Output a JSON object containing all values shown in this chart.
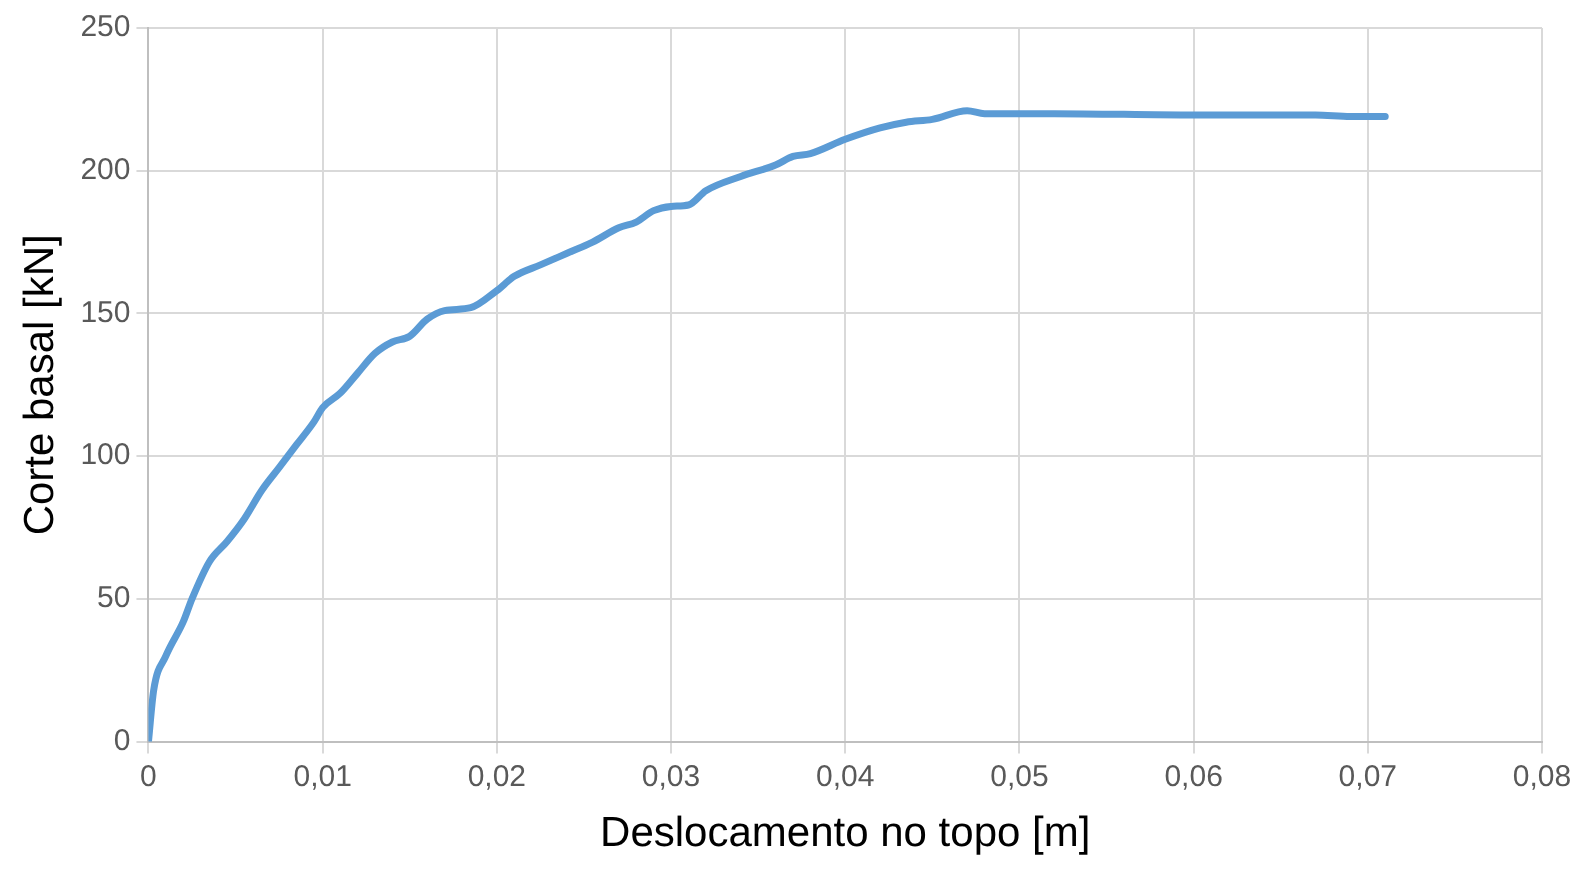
{
  "chart_data": {
    "type": "line",
    "xlabel": "Deslocamento no topo [m]",
    "ylabel": "Corte basal [kN]",
    "x": [
      0,
      0.0003,
      0.001,
      0.002,
      0.0025,
      0.0035,
      0.0045,
      0.0055,
      0.0065,
      0.0075,
      0.0085,
      0.0095,
      0.01,
      0.011,
      0.012,
      0.013,
      0.014,
      0.015,
      0.016,
      0.017,
      0.0185,
      0.02,
      0.021,
      0.0225,
      0.024,
      0.0255,
      0.027,
      0.028,
      0.029,
      0.03,
      0.031,
      0.032,
      0.034,
      0.036,
      0.037,
      0.038,
      0.04,
      0.042,
      0.0435,
      0.045,
      0.047,
      0.048,
      0.052,
      0.06,
      0.067,
      0.069,
      0.071
    ],
    "series": [
      {
        "color": "#5b9bd5",
        "values": [
          0,
          18,
          30,
          42,
          50,
          63,
          70,
          78,
          88,
          96,
          104,
          112,
          117,
          122,
          129,
          136,
          140,
          142,
          148,
          151,
          152,
          158,
          163,
          167,
          171,
          175,
          180,
          182,
          186,
          187.5,
          188,
          193,
          198,
          202,
          205,
          206,
          211,
          215,
          217,
          218,
          221,
          220,
          220,
          219.5,
          219.5,
          219,
          219
        ]
      }
    ],
    "xlim": [
      0,
      0.08
    ],
    "xticks": [
      {
        "value": 0,
        "label": "0"
      },
      {
        "value": 0.01,
        "label": "0,01"
      },
      {
        "value": 0.02,
        "label": "0,02"
      },
      {
        "value": 0.03,
        "label": "0,03"
      },
      {
        "value": 0.04,
        "label": "0,04"
      },
      {
        "value": 0.05,
        "label": "0,05"
      },
      {
        "value": 0.06,
        "label": "0,06"
      },
      {
        "value": 0.07,
        "label": "0,07"
      },
      {
        "value": 0.08,
        "label": "0,08"
      }
    ],
    "ylim": [
      0,
      250
    ],
    "yticks": [
      0,
      50,
      100,
      150,
      200,
      250
    ],
    "grid": true,
    "marker": "none",
    "line_style": "solid"
  }
}
